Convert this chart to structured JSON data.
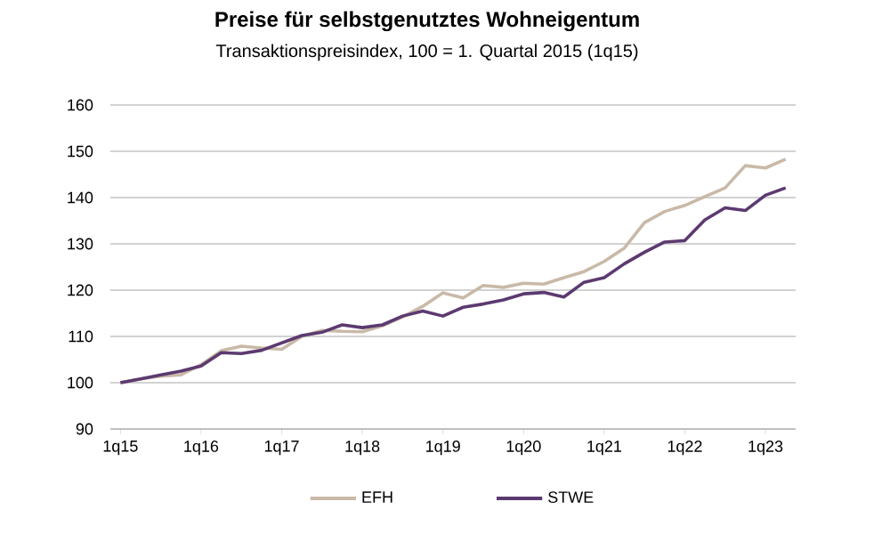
{
  "chart_data": {
    "type": "line",
    "title": "Preise für selbstgenutztes Wohneigentum",
    "subtitle": "Transaktionspreisindex, 100 = 1. Quartal 2015 (1q15)",
    "categories": [
      "1q15",
      null,
      null,
      null,
      "1q16",
      null,
      null,
      null,
      "1q17",
      null,
      null,
      null,
      "1q18",
      null,
      null,
      null,
      "1q19",
      null,
      null,
      null,
      "1q20",
      null,
      null,
      null,
      "1q21",
      null,
      null,
      null,
      "1q22",
      null,
      null,
      null,
      "1q23",
      null
    ],
    "series": [
      {
        "name": "EFH",
        "color": "#c9b9a7",
        "values": [
          100,
          100.8,
          101.4,
          101.7,
          103.9,
          106.9,
          107.9,
          107.5,
          107.2,
          110,
          111.3,
          111.1,
          111,
          112.3,
          114.2,
          116.5,
          119.4,
          118.3,
          121,
          120.6,
          121.5,
          121.3,
          122.7,
          124,
          126.2,
          129.1,
          134.6,
          137,
          138.3,
          140.2,
          142.1,
          146.9,
          146.4,
          148.3
        ]
      },
      {
        "name": "STWE",
        "color": "#5c3a70",
        "values": [
          100,
          100.8,
          101.7,
          102.5,
          103.6,
          106.5,
          106.3,
          107,
          108.6,
          110.2,
          110.9,
          112.5,
          111.9,
          112.5,
          114.4,
          115.5,
          114.4,
          116.3,
          117,
          117.9,
          119.2,
          119.5,
          118.5,
          121.7,
          122.7,
          125.7,
          128.2,
          130.4,
          130.7,
          135.2,
          137.8,
          137.2,
          140.5,
          142.1
        ]
      }
    ],
    "ylim": [
      90,
      160
    ],
    "yticks": [
      90,
      100,
      110,
      120,
      130,
      140,
      150,
      160
    ],
    "grid": "y",
    "legend": "bottom",
    "line_style": "solid"
  }
}
